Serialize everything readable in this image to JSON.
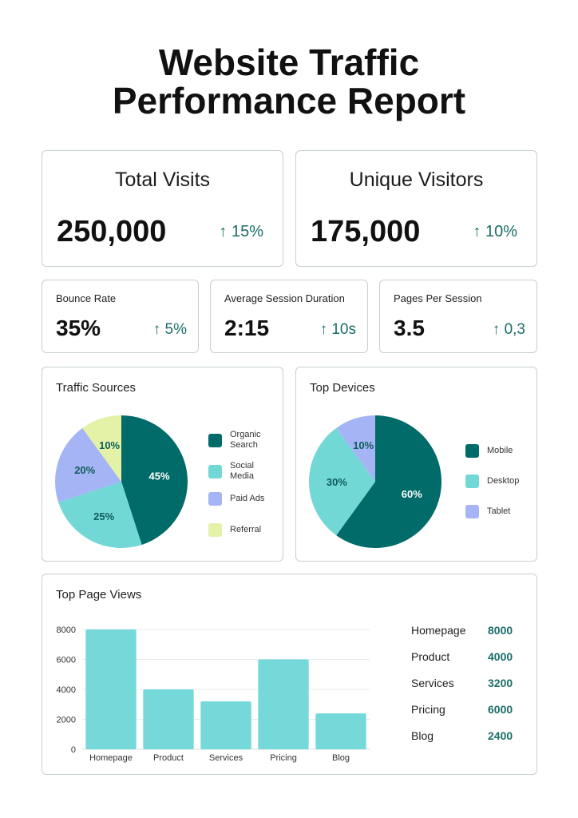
{
  "title": {
    "line1": "Website Traffic",
    "line2": "Performance Report"
  },
  "kpis_large": [
    {
      "label": "Total Visits",
      "value": "250,000",
      "delta": "↑ 15%"
    },
    {
      "label": "Unique Visitors",
      "value": "175,000",
      "delta": "↑ 10%"
    }
  ],
  "kpis_small": [
    {
      "label": "Bounce Rate",
      "value": "35%",
      "delta": "↑ 5%"
    },
    {
      "label": "Average Session Duration",
      "value": "2:15",
      "delta": "↑ 10s"
    },
    {
      "label": "Pages Per Session",
      "value": "3.5",
      "delta": "↑ 0,3"
    }
  ],
  "chart_titles": {
    "traffic_sources": "Traffic Sources",
    "top_devices": "Top Devices",
    "top_page_views": "Top Page Views"
  },
  "chart_data": [
    {
      "type": "pie",
      "title": "Traffic Sources",
      "slices": [
        {
          "label": "Organic Search",
          "value": 45,
          "display": "45%",
          "color": "#006b68"
        },
        {
          "label": "Social Media",
          "value": 25,
          "display": "25%",
          "color": "#72d8d6"
        },
        {
          "label": "Paid Ads",
          "value": 20,
          "display": "20%",
          "color": "#a5b4f5"
        },
        {
          "label": "Referral",
          "value": 10,
          "display": "10%",
          "color": "#e3f2a6"
        }
      ],
      "legend_position": "right"
    },
    {
      "type": "pie",
      "title": "Top Devices",
      "slices": [
        {
          "label": "Mobile",
          "value": 60,
          "display": "60%",
          "color": "#006b68"
        },
        {
          "label": "Desktop",
          "value": 30,
          "display": "30%",
          "color": "#72d8d6"
        },
        {
          "label": "Tablet",
          "value": 10,
          "display": "10%",
          "color": "#a5b4f5"
        }
      ],
      "legend_position": "right"
    },
    {
      "type": "bar",
      "title": "Top Page Views",
      "categories": [
        "Homepage",
        "Product",
        "Services",
        "Pricing",
        "Blog"
      ],
      "values": [
        8000,
        4000,
        3200,
        6000,
        2400
      ],
      "ylim": [
        0,
        8000
      ],
      "yticks": [
        "0",
        "2000",
        "4000",
        "6000",
        "8000"
      ],
      "grid": true,
      "bar_color": "#76d9d9"
    }
  ],
  "page_views_table": [
    {
      "page": "Homepage",
      "views": "8000"
    },
    {
      "page": "Product",
      "views": "4000"
    },
    {
      "page": "Services",
      "views": "3200"
    },
    {
      "page": "Pricing",
      "views": "6000"
    },
    {
      "page": "Blog",
      "views": "2400"
    }
  ],
  "colors": {
    "accent": "#006b68",
    "delta_text": "#1a6e68",
    "card_border": "#c6d1cf"
  }
}
